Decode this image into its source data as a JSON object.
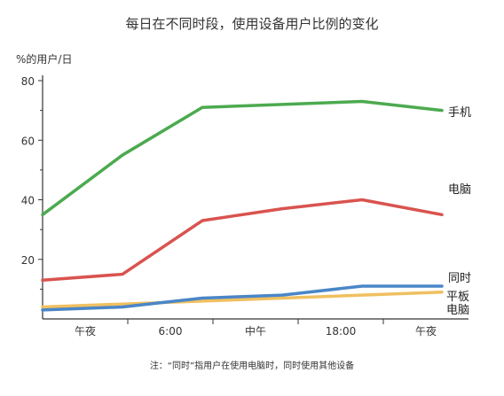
{
  "chart_data": {
    "type": "line",
    "title": "每日在不同时段，使用设备用户比例的变化",
    "ylabel": "%的用户/日",
    "xlabel": "",
    "categories": [
      "午夜",
      "6:00",
      "中午",
      "18:00",
      "午夜"
    ],
    "y_ticks": [
      "80",
      "60",
      "40",
      "20"
    ],
    "ylim": [
      0,
      80
    ],
    "series": [
      {
        "name": "手机",
        "label_lines": [
          "手机"
        ],
        "color": "#4caa4f",
        "points": [
          [
            0,
            35
          ],
          [
            3,
            55
          ],
          [
            6,
            71
          ],
          [
            9,
            72
          ],
          [
            12,
            73
          ],
          [
            15,
            70
          ]
        ]
      },
      {
        "name": "电脑",
        "label_lines": [
          "电脑"
        ],
        "color": "#d9534f",
        "points": [
          [
            0,
            13
          ],
          [
            3,
            15
          ],
          [
            6,
            33
          ],
          [
            9,
            37
          ],
          [
            12,
            40
          ],
          [
            15,
            35
          ]
        ]
      },
      {
        "name": "同时",
        "label_lines": [
          "同时"
        ],
        "color": "#4a86c8",
        "points": [
          [
            0,
            3
          ],
          [
            3,
            4
          ],
          [
            6,
            7
          ],
          [
            9,
            8
          ],
          [
            12,
            11
          ],
          [
            15,
            11
          ]
        ]
      },
      {
        "name": "平板电脑",
        "label_lines": [
          "平板",
          "电脑"
        ],
        "color": "#f0c060",
        "points": [
          [
            0,
            4
          ],
          [
            3,
            5
          ],
          [
            6,
            6
          ],
          [
            9,
            7
          ],
          [
            12,
            8
          ],
          [
            15,
            9
          ]
        ]
      }
    ],
    "note": "注：“同时”指用户在使用电脑时，同时使用其他设备",
    "grid": false
  }
}
